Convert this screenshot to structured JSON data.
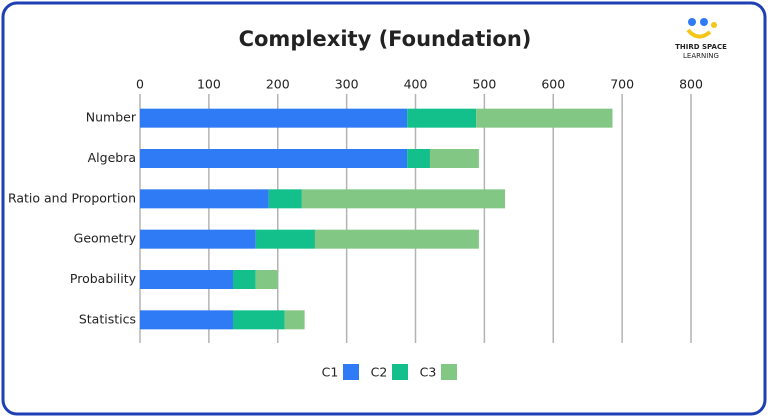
{
  "chart_data": {
    "type": "bar",
    "orientation": "horizontal",
    "stacked": true,
    "title": "Complexity (Foundation)",
    "categories": [
      "Number",
      "Algebra",
      "Ratio and Proportion",
      "Geometry",
      "Probability",
      "Statistics"
    ],
    "series": [
      {
        "name": "C1",
        "color": "#2f7bf5",
        "values": [
          388,
          388,
          187,
          168,
          135,
          135
        ]
      },
      {
        "name": "C2",
        "color": "#13bf8b",
        "values": [
          100,
          33,
          48,
          86,
          33,
          75
        ]
      },
      {
        "name": "C3",
        "color": "#83c784",
        "values": [
          198,
          71,
          295,
          238,
          32,
          29
        ]
      }
    ],
    "xlim": [
      0,
      800
    ],
    "xticks": [
      0,
      100,
      200,
      300,
      400,
      500,
      600,
      700,
      800
    ],
    "grid": true,
    "legend": "bottom"
  },
  "logo": {
    "line1": "THIRD SPACE",
    "line2": "LEARNING"
  }
}
